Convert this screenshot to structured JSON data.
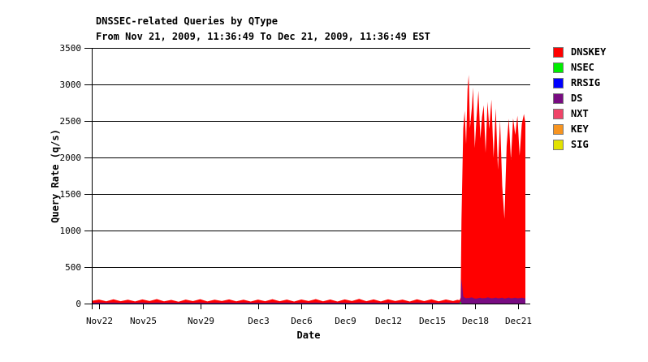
{
  "chart_data": {
    "type": "area",
    "stacked": true,
    "title": "DNSSEC-related Queries by QType",
    "subtitle": "From Nov 21, 2009, 11:36:49 To Dec 21, 2009, 11:36:49 EST",
    "xlabel": "Date",
    "ylabel": "Query Rate (q/s)",
    "ylim": [
      0,
      3500
    ],
    "yticks": [
      0,
      500,
      1000,
      1500,
      2000,
      2500,
      3000,
      3500
    ],
    "xlim": [
      0,
      30
    ],
    "x_unit": "days since Nov 21, 2009, 11:36:49 EST",
    "xticks": [
      {
        "t": 0.517,
        "label": "Nov22"
      },
      {
        "t": 3.517,
        "label": "Nov25"
      },
      {
        "t": 7.517,
        "label": "Nov29"
      },
      {
        "t": 11.517,
        "label": "Dec3"
      },
      {
        "t": 14.517,
        "label": "Dec6"
      },
      {
        "t": 17.517,
        "label": "Dec9"
      },
      {
        "t": 20.517,
        "label": "Dec12"
      },
      {
        "t": 23.517,
        "label": "Dec15"
      },
      {
        "t": 26.517,
        "label": "Dec18"
      },
      {
        "t": 29.517,
        "label": "Dec21"
      }
    ],
    "grid": "horizontal",
    "legend_position": "right",
    "legend": [
      {
        "name": "DNSKEY",
        "color": "#ff0000"
      },
      {
        "name": "NSEC",
        "color": "#00ee00"
      },
      {
        "name": "RRSIG",
        "color": "#0000ff"
      },
      {
        "name": "DS",
        "color": "#780b82"
      },
      {
        "name": "NXT",
        "color": "#f04468"
      },
      {
        "name": "KEY",
        "color": "#f79420"
      },
      {
        "name": "SIG",
        "color": "#e2e200"
      }
    ],
    "stack_order_bottom_to_top": [
      "NSEC",
      "DS",
      "DNSKEY"
    ],
    "zero_series": [
      "RRSIG",
      "NXT",
      "KEY",
      "SIG"
    ],
    "samples": {
      "t_days": [
        0,
        0.5,
        1,
        1.5,
        2,
        2.5,
        3,
        3.5,
        4,
        4.5,
        5,
        5.5,
        6,
        6.5,
        7,
        7.5,
        8,
        8.5,
        9,
        9.5,
        10,
        10.5,
        11,
        11.5,
        12,
        12.5,
        13,
        13.5,
        14,
        14.5,
        15,
        15.5,
        16,
        16.5,
        17,
        17.5,
        18,
        18.5,
        19,
        19.5,
        20,
        20.5,
        21,
        21.5,
        22,
        22.5,
        23,
        23.5,
        24,
        24.5,
        25,
        25.3,
        25.45,
        25.52,
        25.58,
        25.7,
        25.8,
        25.9,
        26.0,
        26.08,
        26.17,
        26.3,
        26.38,
        26.5,
        26.62,
        26.75,
        26.88,
        27.0,
        27.12,
        27.25,
        27.38,
        27.5,
        27.65,
        27.8,
        27.95,
        28.1,
        28.25,
        28.4,
        28.55,
        28.7,
        28.85,
        29.0,
        29.15,
        29.3,
        29.45,
        29.6,
        29.75,
        29.9,
        30.0
      ],
      "DNSKEY": [
        28,
        42,
        20,
        45,
        22,
        40,
        18,
        44,
        24,
        47,
        20,
        38,
        16,
        42,
        22,
        46,
        19,
        40,
        23,
        44,
        20,
        39,
        17,
        43,
        22,
        47,
        21,
        41,
        18,
        44,
        23,
        48,
        20,
        42,
        17,
        45,
        24,
        50,
        21,
        43,
        19,
        46,
        23,
        41,
        18,
        44,
        22,
        47,
        20,
        43,
        24,
        40,
        34,
        40,
        810,
        2300,
        2560,
        2110,
        2860,
        3055,
        2320,
        2600,
        2880,
        2060,
        2470,
        2840,
        2180,
        2480,
        2640,
        1990,
        2680,
        2310,
        2720,
        1920,
        2590,
        1760,
        2440,
        1530,
        1090,
        2080,
        2450,
        1900,
        2460,
        2230,
        2500,
        1950,
        2380,
        2520,
        2400
      ],
      "DS": [
        10,
        13,
        11,
        14,
        10,
        12,
        11,
        13,
        10,
        14,
        11,
        12,
        10,
        13,
        11,
        14,
        10,
        12,
        11,
        13,
        10,
        14,
        11,
        12,
        10,
        13,
        11,
        14,
        10,
        12,
        11,
        13,
        10,
        14,
        11,
        12,
        10,
        13,
        11,
        14,
        10,
        12,
        11,
        13,
        10,
        14,
        11,
        12,
        10,
        13,
        11,
        11,
        12,
        14,
        340,
        95,
        80,
        72,
        78,
        75,
        80,
        85,
        78,
        70,
        68,
        74,
        80,
        72,
        76,
        74,
        84,
        80,
        72,
        76,
        82,
        72,
        76,
        80,
        70,
        74,
        82,
        72,
        76,
        80,
        72,
        74,
        80,
        74,
        70
      ],
      "NSEC": [
        0,
        0,
        0,
        0,
        0,
        0,
        0,
        0,
        0,
        0,
        0,
        0,
        0,
        0,
        0,
        0,
        0,
        0,
        0,
        0,
        0,
        0,
        0,
        0,
        0,
        0,
        0,
        0,
        0,
        0,
        0,
        0,
        0,
        0,
        0,
        0,
        0,
        0,
        0,
        0,
        0,
        0,
        0,
        0,
        0,
        0,
        0,
        0,
        0,
        0,
        0,
        0,
        0,
        28,
        0,
        0,
        0,
        0,
        0,
        0,
        0,
        0,
        0,
        0,
        0,
        0,
        0,
        0,
        0,
        0,
        0,
        0,
        0,
        0,
        0,
        0,
        0,
        0,
        0,
        0,
        0,
        0,
        0,
        0,
        0,
        0,
        0,
        0,
        0
      ]
    }
  }
}
